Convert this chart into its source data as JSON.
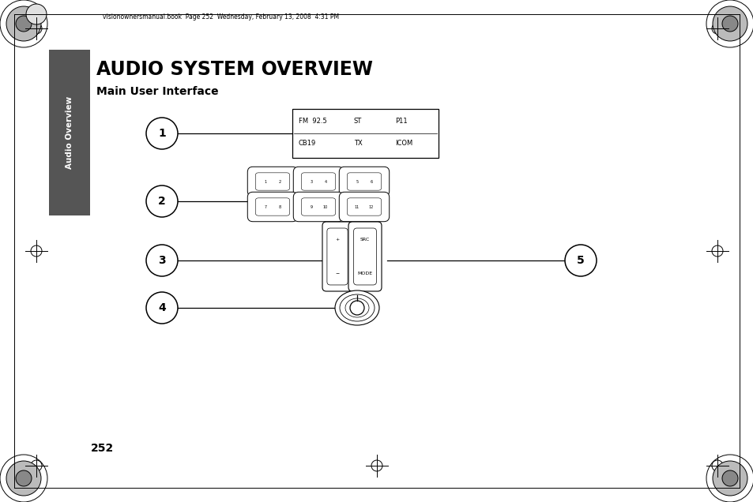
{
  "title": "AUDIO SYSTEM OVERVIEW",
  "subtitle": "Main User Interface",
  "sidebar_text": "Audio Overview",
  "page_number": "252",
  "header_text": "visionownersmanual.book  Page 252  Wednesday, February 13, 2008  4:31 PM",
  "background_color": "#ffffff",
  "sidebar_color": "#555555",
  "fig_width": 9.54,
  "fig_height": 6.36,
  "dpi": 100
}
